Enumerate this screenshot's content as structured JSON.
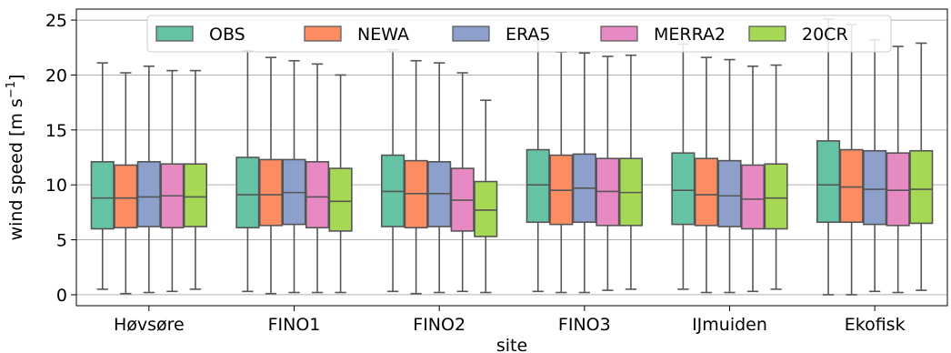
{
  "chart_data": {
    "type": "box",
    "xlabel": "site",
    "ylabel": "wind speed [m s",
    "ylabel_sup": "−1",
    "ylabel_close": "]",
    "ylim": [
      -1,
      26
    ],
    "yticks": [
      0,
      5,
      10,
      15,
      20,
      25
    ],
    "grid": "horizontal",
    "legend_position": "top-center",
    "categories": [
      "Høvsøre",
      "FINO1",
      "FINO2",
      "FINO3",
      "IJmuiden",
      "Ekofisk"
    ],
    "series": [
      {
        "name": "OBS",
        "color": "#66c2a5",
        "boxes": [
          {
            "whislo": 0.5,
            "q1": 6.0,
            "med": 8.8,
            "q3": 12.1,
            "whishi": 21.1
          },
          {
            "whislo": 0.3,
            "q1": 6.1,
            "med": 9.1,
            "q3": 12.5,
            "whishi": 22.2
          },
          {
            "whislo": 0.3,
            "q1": 6.2,
            "med": 9.4,
            "q3": 12.7,
            "whishi": 22.3
          },
          {
            "whislo": 0.3,
            "q1": 6.6,
            "med": 10.0,
            "q3": 13.2,
            "whishi": 23.1
          },
          {
            "whislo": 0.5,
            "q1": 6.4,
            "med": 9.5,
            "q3": 12.9,
            "whishi": 22.8
          },
          {
            "whislo": 0.0,
            "q1": 6.6,
            "med": 10.0,
            "q3": 14.0,
            "whishi": 25.1
          }
        ]
      },
      {
        "name": "NEWA",
        "color": "#fc8d62",
        "boxes": [
          {
            "whislo": 0.1,
            "q1": 6.1,
            "med": 8.8,
            "q3": 11.8,
            "whishi": 20.2
          },
          {
            "whislo": 0.1,
            "q1": 6.3,
            "med": 9.1,
            "q3": 12.3,
            "whishi": 21.6
          },
          {
            "whislo": 0.1,
            "q1": 6.1,
            "med": 9.2,
            "q3": 12.2,
            "whishi": 21.3
          },
          {
            "whislo": 0.2,
            "q1": 6.4,
            "med": 9.5,
            "q3": 12.7,
            "whishi": 22.1
          },
          {
            "whislo": 0.2,
            "q1": 6.3,
            "med": 9.1,
            "q3": 12.4,
            "whishi": 21.6
          },
          {
            "whislo": 0.0,
            "q1": 6.6,
            "med": 9.8,
            "q3": 13.2,
            "whishi": 24.6
          }
        ]
      },
      {
        "name": "ERA5",
        "color": "#8da0cb",
        "boxes": [
          {
            "whislo": 0.2,
            "q1": 6.2,
            "med": 8.9,
            "q3": 12.1,
            "whishi": 20.8
          },
          {
            "whislo": 0.2,
            "q1": 6.4,
            "med": 9.3,
            "q3": 12.3,
            "whishi": 21.3
          },
          {
            "whislo": 0.2,
            "q1": 6.2,
            "med": 9.2,
            "q3": 12.1,
            "whishi": 21.1
          },
          {
            "whislo": 0.2,
            "q1": 6.6,
            "med": 9.7,
            "q3": 12.8,
            "whishi": 22.0
          },
          {
            "whislo": 0.2,
            "q1": 6.2,
            "med": 9.0,
            "q3": 12.2,
            "whishi": 21.4
          },
          {
            "whislo": 0.3,
            "q1": 6.4,
            "med": 9.6,
            "q3": 13.1,
            "whishi": 23.2
          }
        ]
      },
      {
        "name": "MERRA2",
        "color": "#e78ac3",
        "boxes": [
          {
            "whislo": 0.3,
            "q1": 6.1,
            "med": 9.0,
            "q3": 11.9,
            "whishi": 20.4
          },
          {
            "whislo": 0.2,
            "q1": 6.1,
            "med": 8.9,
            "q3": 12.1,
            "whishi": 21.0
          },
          {
            "whislo": 0.3,
            "q1": 5.8,
            "med": 8.6,
            "q3": 11.5,
            "whishi": 20.2
          },
          {
            "whislo": 0.4,
            "q1": 6.3,
            "med": 9.4,
            "q3": 12.4,
            "whishi": 21.7
          },
          {
            "whislo": 0.3,
            "q1": 6.0,
            "med": 8.7,
            "q3": 11.8,
            "whishi": 20.8
          },
          {
            "whislo": 0.2,
            "q1": 6.3,
            "med": 9.5,
            "q3": 12.9,
            "whishi": 22.6
          }
        ]
      },
      {
        "name": "20CR",
        "color": "#a6d854",
        "boxes": [
          {
            "whislo": 0.5,
            "q1": 6.2,
            "med": 8.9,
            "q3": 11.9,
            "whishi": 20.4
          },
          {
            "whislo": 0.2,
            "q1": 5.8,
            "med": 8.5,
            "q3": 11.5,
            "whishi": 20.0
          },
          {
            "whislo": 0.2,
            "q1": 5.3,
            "med": 7.7,
            "q3": 10.3,
            "whishi": 17.7
          },
          {
            "whislo": 0.5,
            "q1": 6.3,
            "med": 9.3,
            "q3": 12.4,
            "whishi": 21.8
          },
          {
            "whislo": 0.5,
            "q1": 6.0,
            "med": 8.8,
            "q3": 11.9,
            "whishi": 20.9
          },
          {
            "whislo": 0.4,
            "q1": 6.5,
            "med": 9.6,
            "q3": 13.1,
            "whishi": 22.9
          }
        ]
      }
    ]
  }
}
